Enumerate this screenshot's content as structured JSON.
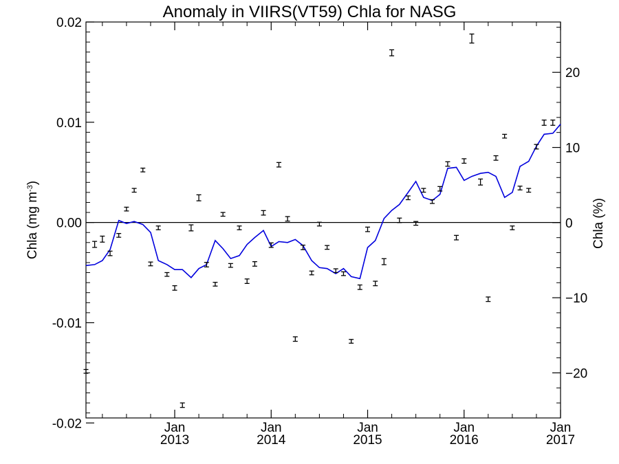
{
  "chart_data": {
    "type": "line",
    "title": "Anomaly in VIIRS(VT59) Chla for NASG",
    "ylabel_left": "Chla (mg m",
    "ylabel_left_sup": "-3",
    "ylabel_left_end": ")",
    "ylabel_right": "Chla (%)",
    "ylim_left": [
      -0.0195,
      0.02
    ],
    "ylim_right": [
      -26.0,
      26.7
    ],
    "xlim": [
      2012.08,
      2017.0
    ],
    "yticks_left": [
      {
        "v": 0.02,
        "label": "0.02"
      },
      {
        "v": 0.01,
        "label": "0.01"
      },
      {
        "v": 0.0,
        "label": "0.00"
      },
      {
        "v": -0.01,
        "label": "-0.01"
      },
      {
        "v": -0.02,
        "label": "-0.02"
      }
    ],
    "yticks_right": [
      {
        "v": 20,
        "label": "20"
      },
      {
        "v": 10,
        "label": "10"
      },
      {
        "v": 0,
        "label": "0"
      },
      {
        "v": -10,
        "label": "−10"
      },
      {
        "v": -20,
        "label": "−20"
      }
    ],
    "xticks": [
      {
        "v": 2013.0,
        "month": "Jan",
        "year": "2013"
      },
      {
        "v": 2014.0,
        "month": "Jan",
        "year": "2014"
      },
      {
        "v": 2015.0,
        "month": "Jan",
        "year": "2015"
      },
      {
        "v": 2016.0,
        "month": "Jan",
        "year": "2016"
      },
      {
        "v": 2017.0,
        "month": "Jan",
        "year": "2017"
      }
    ],
    "zero_line": 0.0,
    "colors": {
      "line": "#0000dd",
      "points": "#000000",
      "axes": "#000000"
    },
    "series": [
      {
        "style": "line",
        "axis": "left",
        "x": [
          2012.08,
          2012.17,
          2012.25,
          2012.33,
          2012.42,
          2012.5,
          2012.58,
          2012.67,
          2012.75,
          2012.83,
          2012.92,
          2013.0,
          2013.08,
          2013.17,
          2013.25,
          2013.33,
          2013.42,
          2013.5,
          2013.58,
          2013.67,
          2013.75,
          2013.83,
          2013.92,
          2014.0,
          2014.08,
          2014.17,
          2014.25,
          2014.33,
          2014.42,
          2014.5,
          2014.58,
          2014.67,
          2014.75,
          2014.83,
          2014.92,
          2015.0,
          2015.08,
          2015.17,
          2015.25,
          2015.33,
          2015.42,
          2015.5,
          2015.58,
          2015.67,
          2015.75,
          2015.83,
          2015.92,
          2016.0,
          2016.08,
          2016.17,
          2016.25,
          2016.33,
          2016.42,
          2016.5,
          2016.58,
          2016.67,
          2016.75,
          2016.83,
          2016.92,
          2017.0
        ],
        "y": [
          -0.0043,
          -0.0042,
          -0.0038,
          -0.0027,
          0.0002,
          -0.0001,
          0.0001,
          -0.0002,
          -0.001,
          -0.0038,
          -0.0042,
          -0.0047,
          -0.0047,
          -0.0055,
          -0.0046,
          -0.0042,
          -0.0018,
          -0.0026,
          -0.0036,
          -0.0033,
          -0.0022,
          -0.0015,
          -0.0008,
          -0.0024,
          -0.0019,
          -0.002,
          -0.0017,
          -0.0023,
          -0.0038,
          -0.0045,
          -0.0046,
          -0.0051,
          -0.0046,
          -0.0054,
          -0.0056,
          -0.0025,
          -0.0018,
          0.0004,
          0.0012,
          0.0018,
          0.003,
          0.0041,
          0.0025,
          0.0022,
          0.0028,
          0.0054,
          0.0055,
          0.0042,
          0.0046,
          0.0049,
          0.005,
          0.0046,
          0.0025,
          0.003,
          0.0056,
          0.0061,
          0.0076,
          0.0088,
          0.0089,
          0.0098
        ]
      },
      {
        "style": "errorbar",
        "axis": "right",
        "x": [
          2012.08,
          2012.17,
          2012.25,
          2012.33,
          2012.42,
          2012.5,
          2012.58,
          2012.67,
          2012.75,
          2012.83,
          2012.92,
          2013.0,
          2013.08,
          2013.17,
          2013.25,
          2013.33,
          2013.42,
          2013.5,
          2013.58,
          2013.67,
          2013.75,
          2013.83,
          2013.92,
          2014.0,
          2014.08,
          2014.17,
          2014.25,
          2014.33,
          2014.42,
          2014.5,
          2014.58,
          2014.67,
          2014.75,
          2014.83,
          2014.92,
          2015.0,
          2015.08,
          2015.17,
          2015.25,
          2015.33,
          2015.42,
          2015.5,
          2015.58,
          2015.67,
          2015.75,
          2015.83,
          2015.92,
          2016.0,
          2016.08,
          2016.17,
          2016.25,
          2016.33,
          2016.42,
          2016.5,
          2016.58,
          2016.67,
          2016.75,
          2016.83,
          2016.92,
          2017.0
        ],
        "y": [
          -19.8,
          -2.9,
          -2.2,
          -4.1,
          -1.7,
          1.8,
          4.3,
          7.0,
          -5.5,
          -0.7,
          -6.9,
          -8.7,
          -24.3,
          -0.7,
          3.3,
          -5.6,
          -8.2,
          1.1,
          -5.7,
          -0.7,
          -7.8,
          -5.5,
          1.3,
          -3.0,
          7.7,
          0.5,
          -15.5,
          -3.3,
          -6.7,
          -0.2,
          -3.3,
          -6.4,
          -6.8,
          -15.8,
          -8.6,
          -0.9,
          -8.1,
          -5.2,
          22.6,
          0.3,
          3.3,
          -0.1,
          4.3,
          2.8,
          4.5,
          7.8,
          -2.0,
          8.2,
          24.5,
          5.4,
          -10.2,
          8.6,
          11.5,
          -0.7,
          4.6,
          4.3,
          10.1,
          13.3,
          13.3,
          null
        ],
        "err": [
          0.25,
          0.4,
          0.4,
          0.3,
          0.25,
          0.25,
          0.25,
          0.25,
          0.25,
          0.25,
          0.25,
          0.3,
          0.3,
          0.4,
          0.4,
          0.3,
          0.25,
          0.25,
          0.25,
          0.25,
          0.3,
          0.3,
          0.3,
          0.3,
          0.3,
          0.3,
          0.3,
          0.3,
          0.25,
          0.25,
          0.25,
          0.25,
          0.25,
          0.25,
          0.3,
          0.3,
          0.3,
          0.4,
          0.4,
          0.3,
          0.25,
          0.25,
          0.25,
          0.25,
          0.3,
          0.3,
          0.3,
          0.3,
          0.6,
          0.4,
          0.3,
          0.3,
          0.25,
          0.25,
          0.25,
          0.25,
          0.3,
          0.35,
          0.35,
          0.0
        ]
      }
    ]
  }
}
